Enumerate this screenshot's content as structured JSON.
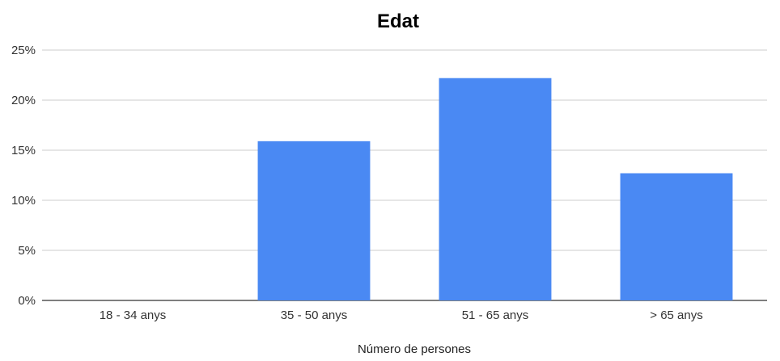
{
  "chart_data": {
    "type": "bar",
    "title": "Edat",
    "xlabel": "Número de persones",
    "ylabel": "",
    "categories": [
      "18 - 34 anys",
      "35 - 50 anys",
      "51 - 65 anys",
      "> 65 anys"
    ],
    "values": [
      0,
      15.9,
      22.2,
      12.7
    ],
    "ylim": [
      0,
      25
    ],
    "yticks": [
      0,
      5,
      10,
      15,
      20,
      25
    ],
    "ytick_labels": [
      "0%",
      "5%",
      "10%",
      "15%",
      "20%",
      "25%"
    ],
    "value_unit": "%",
    "grid": true,
    "legend": "none",
    "bar_color": "#4a89f3"
  }
}
